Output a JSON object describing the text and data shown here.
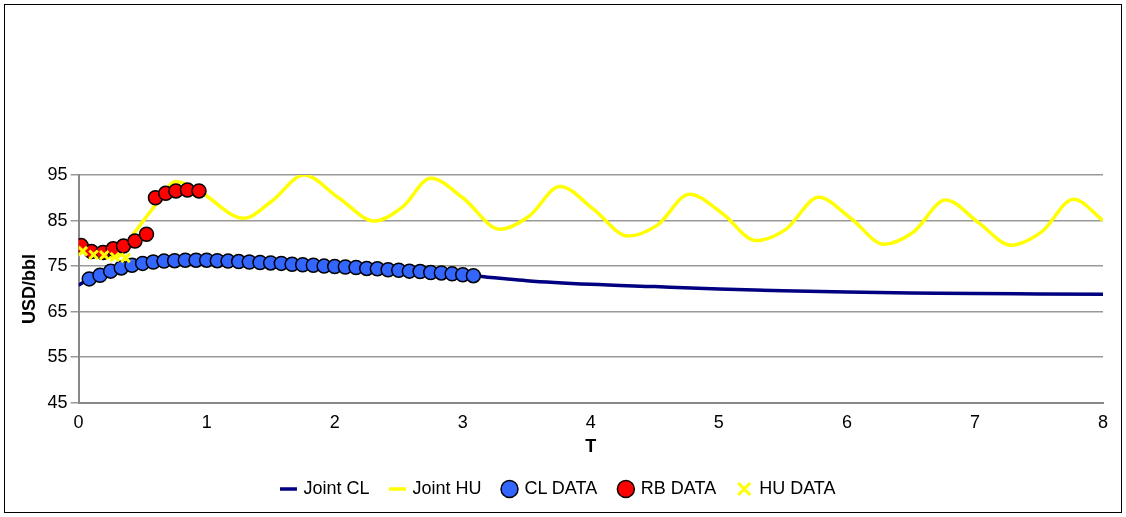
{
  "chart_data": {
    "type": "line",
    "xlabel": "T",
    "ylabel": "USD/bbl",
    "xlim": [
      0,
      8
    ],
    "xticks": [
      0,
      1,
      2,
      3,
      4,
      5,
      6,
      7,
      8
    ],
    "ylim": [
      45,
      95
    ],
    "yticks": [
      45,
      55,
      65,
      75,
      85,
      95
    ],
    "grid": "y",
    "legend": "bottom",
    "series": [
      {
        "name": "Joint CL",
        "color": "#000080",
        "marker": "none",
        "x": [
          0,
          0.083,
          0.25,
          0.5,
          0.75,
          1,
          1.5,
          2,
          2.5,
          3,
          3.083,
          3.5,
          4,
          4.5,
          5,
          5.5,
          6,
          6.5,
          7,
          7.5,
          8
        ],
        "values": [
          70.8,
          72.2,
          73.9,
          75.6,
          76.2,
          76.3,
          75.8,
          75.0,
          74.2,
          73.1,
          72.9,
          71.8,
          71.0,
          70.5,
          70.0,
          69.6,
          69.3,
          69.1,
          69.0,
          68.9,
          68.8
        ]
      },
      {
        "name": "Joint HU",
        "color": "#ffff00",
        "marker": "none",
        "x": [
          0,
          0.15,
          0.3,
          0.43,
          0.6,
          0.76,
          0.95,
          1.29,
          1.51,
          1.76,
          2.03,
          2.31,
          2.53,
          2.75,
          3.0,
          3.29,
          3.52,
          3.76,
          4.02,
          4.29,
          4.52,
          4.77,
          5.03,
          5.29,
          5.52,
          5.78,
          6.03,
          6.29,
          6.52,
          6.77,
          7.03,
          7.28,
          7.52,
          7.77,
          8
        ],
        "values": [
          78.2,
          77.5,
          77.0,
          82.1,
          88.4,
          93.6,
          91.3,
          85.5,
          89.3,
          95,
          90,
          84.9,
          88,
          94.3,
          90,
          83.1,
          86,
          92.5,
          87.5,
          81.6,
          84,
          90.8,
          86.5,
          80.6,
          83,
          90.1,
          85.5,
          79.8,
          82.5,
          89.5,
          84.5,
          79.6,
          82.5,
          89.7,
          85
        ]
      },
      {
        "name": "CL DATA",
        "type": "scatter",
        "color": "#3366ff",
        "marker": "circle",
        "x": [
          0.083,
          0.167,
          0.25,
          0.333,
          0.417,
          0.5,
          0.583,
          0.667,
          0.75,
          0.833,
          0.917,
          1.0,
          1.083,
          1.167,
          1.25,
          1.333,
          1.417,
          1.5,
          1.583,
          1.667,
          1.75,
          1.833,
          1.917,
          2.0,
          2.083,
          2.167,
          2.25,
          2.333,
          2.417,
          2.5,
          2.583,
          2.667,
          2.75,
          2.833,
          2.917,
          3.0,
          3.083
        ],
        "values": [
          72.2,
          73.0,
          73.9,
          74.6,
          75.2,
          75.6,
          75.9,
          76.1,
          76.2,
          76.3,
          76.3,
          76.3,
          76.2,
          76.1,
          76.0,
          75.9,
          75.8,
          75.7,
          75.6,
          75.4,
          75.3,
          75.2,
          75.0,
          74.9,
          74.8,
          74.7,
          74.5,
          74.4,
          74.2,
          74.1,
          73.9,
          73.8,
          73.6,
          73.5,
          73.3,
          73.1,
          72.9
        ]
      },
      {
        "name": "RB DATA",
        "type": "scatter",
        "color": "#ff0000",
        "marker": "circle",
        "x": [
          0.02,
          0.1,
          0.19,
          0.27,
          0.35,
          0.44,
          0.53,
          0.6,
          0.68,
          0.76,
          0.85,
          0.94
        ],
        "values": [
          79.5,
          78.2,
          78.0,
          78.8,
          79.4,
          80.5,
          82.0,
          90.0,
          91.0,
          91.5,
          91.7,
          91.5
        ]
      },
      {
        "name": "HU DATA",
        "type": "scatter",
        "color": "#ffff00",
        "marker": "cross",
        "x": [
          0.033,
          0.117,
          0.2,
          0.283,
          0.367
        ],
        "values": [
          78.3,
          77.5,
          77.4,
          77.0,
          76.8
        ]
      }
    ]
  }
}
